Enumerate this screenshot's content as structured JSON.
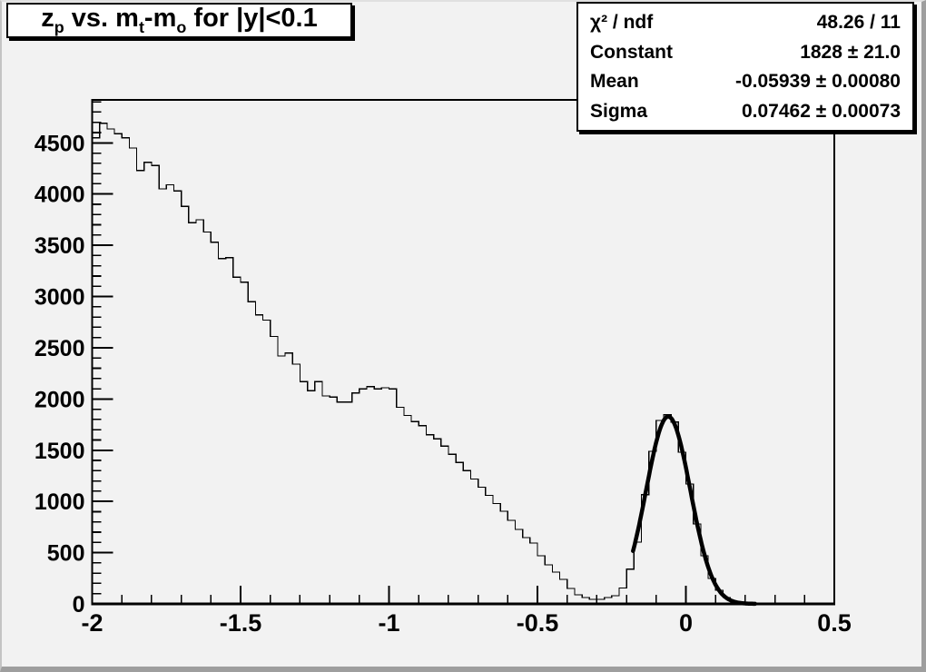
{
  "window": {
    "background": "#f2f2f2",
    "edge_shadow": "#9e9e9e"
  },
  "stats": {
    "rows": [
      {
        "label": "χ² / ndf",
        "value": "48.26 / 11"
      },
      {
        "label": "Constant",
        "value": "1828 ± 21.0"
      },
      {
        "label": "Mean",
        "value": "-0.05939 ± 0.00080"
      },
      {
        "label": "Sigma",
        "value": "0.07462 ± 0.00073"
      }
    ]
  },
  "chart_data": {
    "type": "histogram",
    "title": "z_p vs. m_t-m_o for |y|<0.1",
    "title_segments": [
      {
        "text": "z"
      },
      {
        "text": "p",
        "script": "sub"
      },
      {
        "text": " vs. m"
      },
      {
        "text": "t",
        "script": "sub"
      },
      {
        "text": "-m"
      },
      {
        "text": "o",
        "script": "sub"
      },
      {
        "text": " for |y|<0.1"
      }
    ],
    "xlabel": "",
    "ylabel": "",
    "xlim": [
      -2,
      0.5
    ],
    "ylim": [
      0,
      4919
    ],
    "x_start": -2,
    "bin_width": 0.025,
    "n_bins": 100,
    "values": [
      4550,
      4690,
      4635,
      4590,
      4550,
      4450,
      4230,
      4310,
      4280,
      4050,
      4090,
      4030,
      3880,
      3720,
      3750,
      3630,
      3530,
      3370,
      3380,
      3190,
      3140,
      2950,
      2820,
      2770,
      2610,
      2420,
      2450,
      2340,
      2170,
      2080,
      2170,
      2030,
      2020,
      1970,
      1970,
      2060,
      2100,
      2120,
      2100,
      2110,
      2100,
      1920,
      1840,
      1780,
      1740,
      1650,
      1610,
      1540,
      1460,
      1380,
      1300,
      1220,
      1140,
      1060,
      980,
      905,
      816,
      728,
      648,
      595,
      470,
      382,
      311,
      240,
      151,
      89,
      62,
      44,
      44,
      62,
      80,
      155,
      340,
      604,
      1065,
      1490,
      1790,
      1845,
      1775,
      1480,
      1170,
      780,
      470,
      249,
      133,
      62,
      27,
      18,
      8,
      4,
      2,
      1,
      0,
      0,
      0,
      0,
      0,
      0,
      0,
      0
    ],
    "x_major_step": 0.5,
    "x_minor_step": 0.1,
    "y_major_step": 500,
    "y_minor_step": 100,
    "x_tick_labels": [
      "-2",
      "-1.5",
      "-1",
      "-0.5",
      "0",
      "0.5"
    ],
    "y_tick_labels": [
      "0",
      "500",
      "1000",
      "1500",
      "2000",
      "2500",
      "3000",
      "3500",
      "4000",
      "4500"
    ],
    "grid": false,
    "legend": "none",
    "line_color": "#000000",
    "fit": {
      "type": "gaussian",
      "constant": 1828,
      "mean": -0.05939,
      "sigma": 0.07462,
      "draw_range": [
        -0.178,
        0.235
      ],
      "color": "#000000"
    }
  }
}
